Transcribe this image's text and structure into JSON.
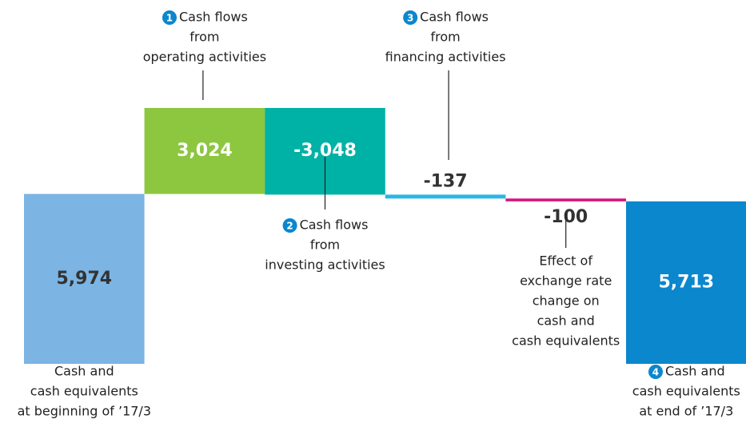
{
  "chart_data": {
    "type": "waterfall",
    "categories": [
      [
        "Cash and",
        "cash equivalents",
        "at beginning of ’17/3"
      ],
      [
        "Cash flows",
        "from",
        "operating activities"
      ],
      [
        "Cash flows",
        "from",
        "investing activities"
      ],
      [
        "Cash flows",
        "from",
        "financing activities"
      ],
      [
        "Effect of",
        "exchange rate",
        "change on",
        "cash and",
        "cash equivalents"
      ],
      [
        "Cash and",
        "cash equivalents",
        "at end of ’17/3"
      ]
    ],
    "badges": [
      null,
      "1",
      "2",
      "3",
      null,
      "4"
    ],
    "values": [
      5974,
      3024,
      -3048,
      -137,
      -100,
      5713
    ],
    "value_labels": [
      "5,974",
      "3,024",
      "-3,048",
      "-137",
      "-100",
      "5,713"
    ],
    "totals": [
      true,
      false,
      false,
      false,
      false,
      true
    ],
    "colors": [
      "#7cb4e3",
      "#8dc63f",
      "#00b2a5",
      "#29b6e8",
      "#d6137e",
      "#0a87cd"
    ]
  }
}
